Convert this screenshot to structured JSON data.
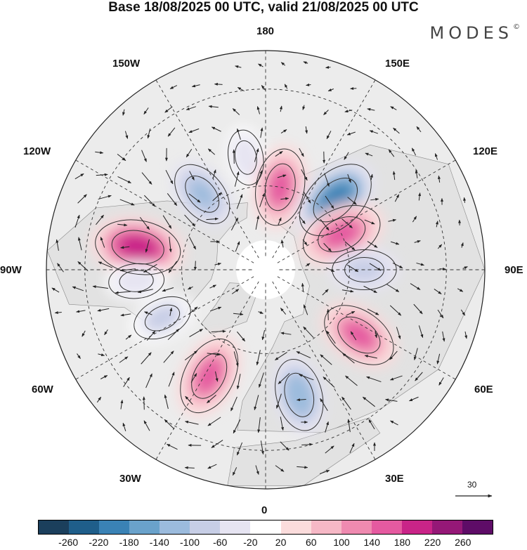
{
  "title": "Base 18/08/2025 00 UTC, valid 21/08/2025 00 UTC",
  "brand": {
    "name": "MODES",
    "mark": "©"
  },
  "longitude_labels": {
    "lon_180": "180",
    "lon_150e": "150E",
    "lon_120e": "120E",
    "lon_90e": "90E",
    "lon_60e": "60E",
    "lon_30e": "30E",
    "lon_0": "0",
    "lon_30w": "30W",
    "lon_60w": "60W",
    "lon_90w": "90W",
    "lon_120w": "120W",
    "lon_150w": "150W"
  },
  "wind_reference": {
    "value": "30",
    "unit_icon": "arrow-right-icon"
  },
  "colorbar": {
    "colors": [
      "#1b3f5c",
      "#1f5e8a",
      "#3a82b5",
      "#6aa2cb",
      "#9bbbdd",
      "#c7cee6",
      "#e6e4f2",
      "#ffffff",
      "#fbdcdc",
      "#f6b8c6",
      "#ef8ab0",
      "#e55aa0",
      "#c92488",
      "#951877",
      "#5e0c67"
    ],
    "tick_labels": [
      "-260",
      "-220",
      "-180",
      "-140",
      "-100",
      "-60",
      "-20",
      "20",
      "60",
      "100",
      "140",
      "180",
      "220",
      "260"
    ]
  },
  "map_data": {
    "projection": "north polar stereographic",
    "field": "geopotential height anomaly with wind vectors",
    "anomaly_centers": [
      {
        "lon": -100,
        "lat": 45,
        "value": 200,
        "sign": "positive"
      },
      {
        "lon": -140,
        "lat": 55,
        "value": -120,
        "sign": "negative"
      },
      {
        "lon": -170,
        "lat": 50,
        "value": -60,
        "sign": "negative"
      },
      {
        "lon": 170,
        "lat": 60,
        "value": 160,
        "sign": "positive"
      },
      {
        "lon": 135,
        "lat": 55,
        "value": -200,
        "sign": "negative"
      },
      {
        "lon": 115,
        "lat": 60,
        "value": 180,
        "sign": "positive"
      },
      {
        "lon": 90,
        "lat": 55,
        "value": -100,
        "sign": "negative"
      },
      {
        "lon": 55,
        "lat": 50,
        "value": 160,
        "sign": "positive"
      },
      {
        "lon": 15,
        "lat": 45,
        "value": -140,
        "sign": "negative"
      },
      {
        "lon": -28,
        "lat": 48,
        "value": 170,
        "sign": "positive"
      },
      {
        "lon": -65,
        "lat": 50,
        "value": -80,
        "sign": "negative"
      },
      {
        "lon": -85,
        "lat": 45,
        "value": -60,
        "sign": "negative"
      }
    ]
  }
}
